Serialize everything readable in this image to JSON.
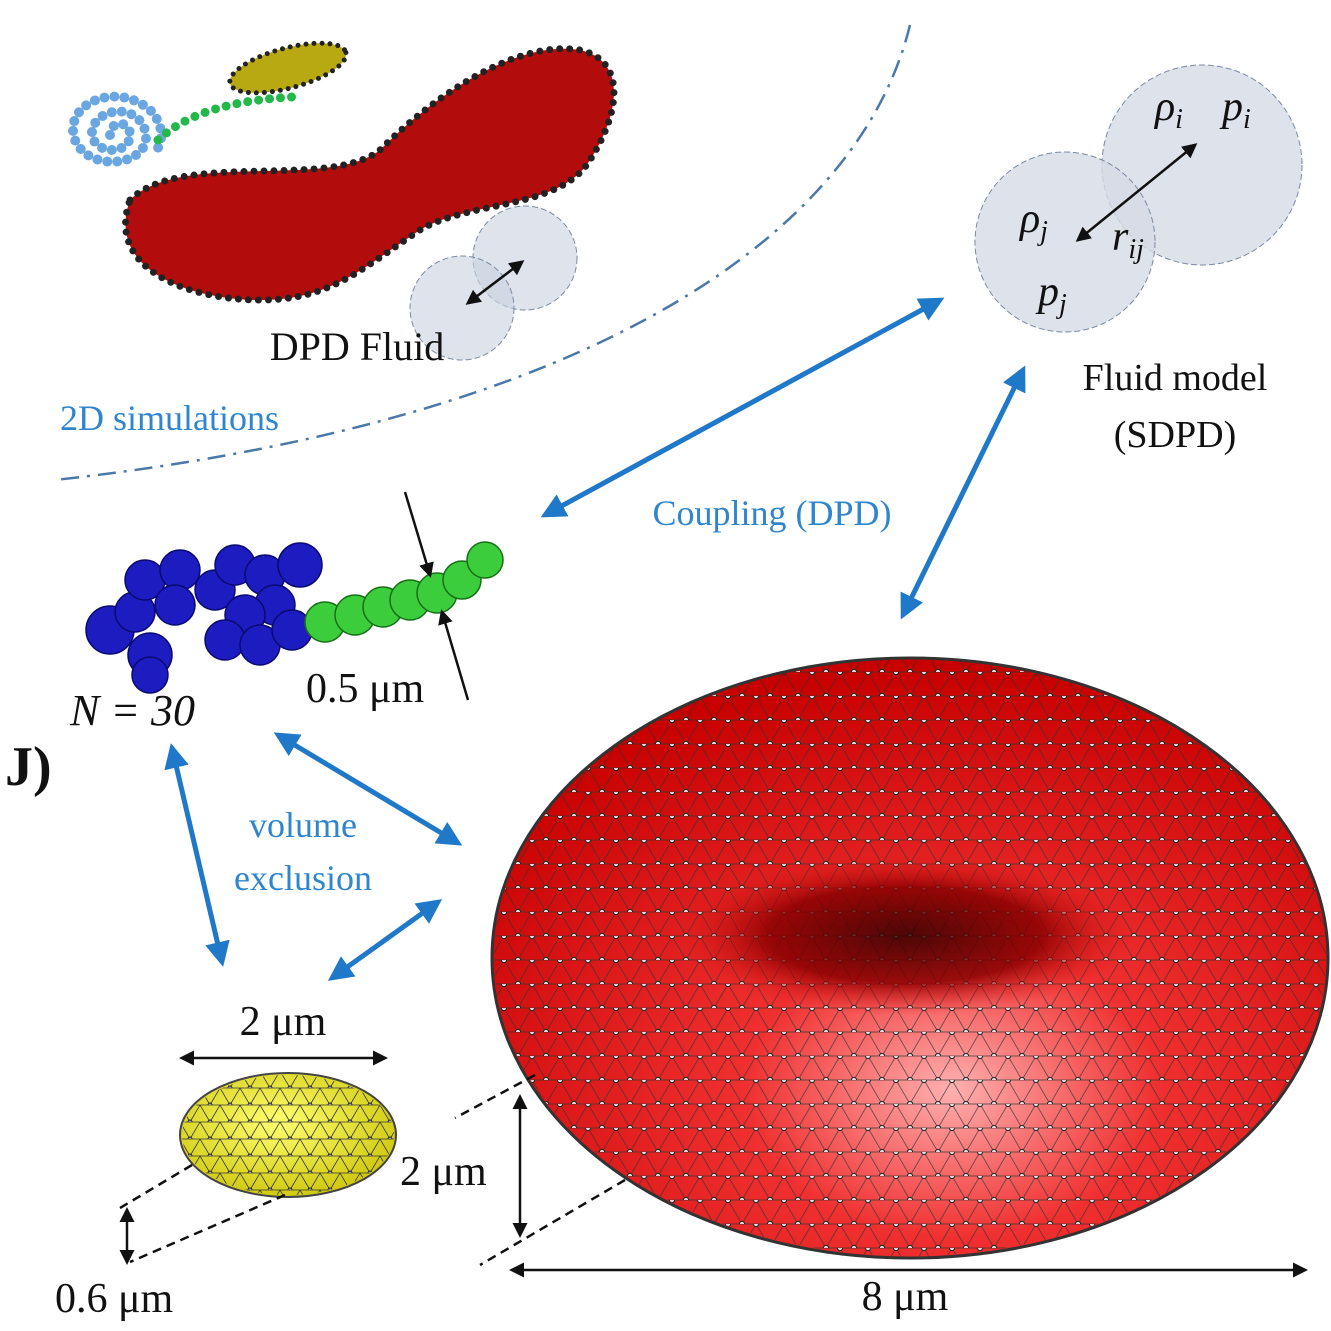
{
  "panel_label": "J)",
  "top_left": {
    "dpd_label": "DPD Fluid",
    "region_label": "2D simulations"
  },
  "fluid_model": {
    "title_line1": "Fluid model",
    "title_line2": "(SDPD)",
    "rho_i": {
      "base": "ρ",
      "sub": "i"
    },
    "p_i": {
      "base": "p",
      "sub": "i"
    },
    "rho_j": {
      "base": "ρ",
      "sub": "j"
    },
    "r_ij": {
      "base": "r",
      "sub": "ij"
    },
    "p_j": {
      "base": "p",
      "sub": "j"
    }
  },
  "coupling_label": "Coupling (DPD)",
  "polymer": {
    "diameter_label": "0.5 μm",
    "count_label": "N = 30"
  },
  "interaction_label": {
    "line1": "volume",
    "line2": "exclusion"
  },
  "platelet": {
    "width_label": "2 μm",
    "thickness_label": "0.6 μm"
  },
  "rbc": {
    "height_label": "2 μm",
    "width_label": "8 μm"
  }
}
